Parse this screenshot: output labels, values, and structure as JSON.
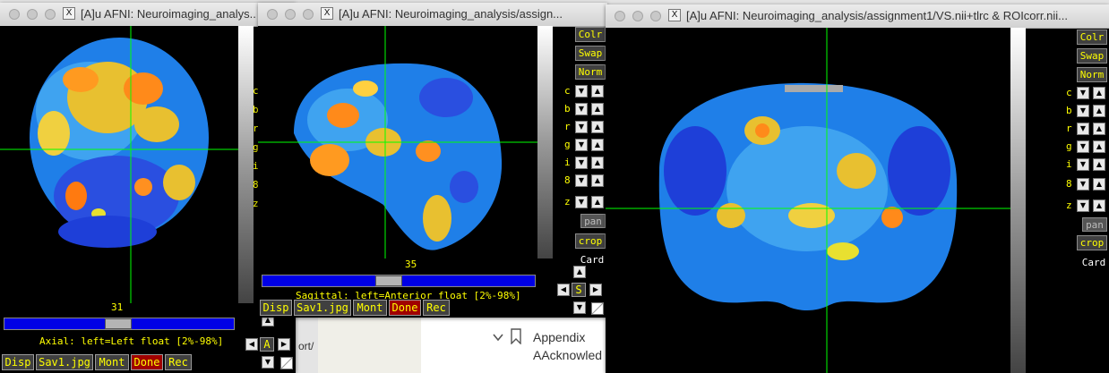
{
  "windows": {
    "axial": {
      "title": "[A]u AFNI: Neuroimaging_analys..",
      "slice_number": "31",
      "caption": "Axial: left=Left float [2%-98%]"
    },
    "sagittal": {
      "title": "[A]u AFNI: Neuroimaging_analysis/assign...",
      "slice_number": "35",
      "caption": "Sagittal: left=Anterior float [2%-98%]"
    },
    "coronal": {
      "title": "[A]u AFNI: Neuroimaging_analysis/assignment1/VS.nii+tlrc & ROIcorr.nii..."
    }
  },
  "window_icon": "X",
  "side_buttons": {
    "colr": "Colr",
    "swap": "Swap",
    "norm": "Norm",
    "pan": "pan",
    "crop": "crop",
    "card": "Card"
  },
  "side_letters": [
    "c",
    "b",
    "r",
    "g",
    "i",
    "8",
    "z"
  ],
  "bottom_buttons": {
    "disp": "Disp",
    "save": "Sav1.jpg",
    "mont": "Mont",
    "done": "Done",
    "rec": "Rec"
  },
  "nav": {
    "a": "A",
    "s": "S"
  },
  "background_doc": {
    "appendix": "Appendix",
    "acknowledgments": "AAcknowled",
    "fragment": "ort/"
  },
  "colors": {
    "button_text": "#ffff00",
    "button_bg": "#404040",
    "done_bg": "#a00000",
    "slider": "#0000e6",
    "crosshair": "#00ff00"
  }
}
